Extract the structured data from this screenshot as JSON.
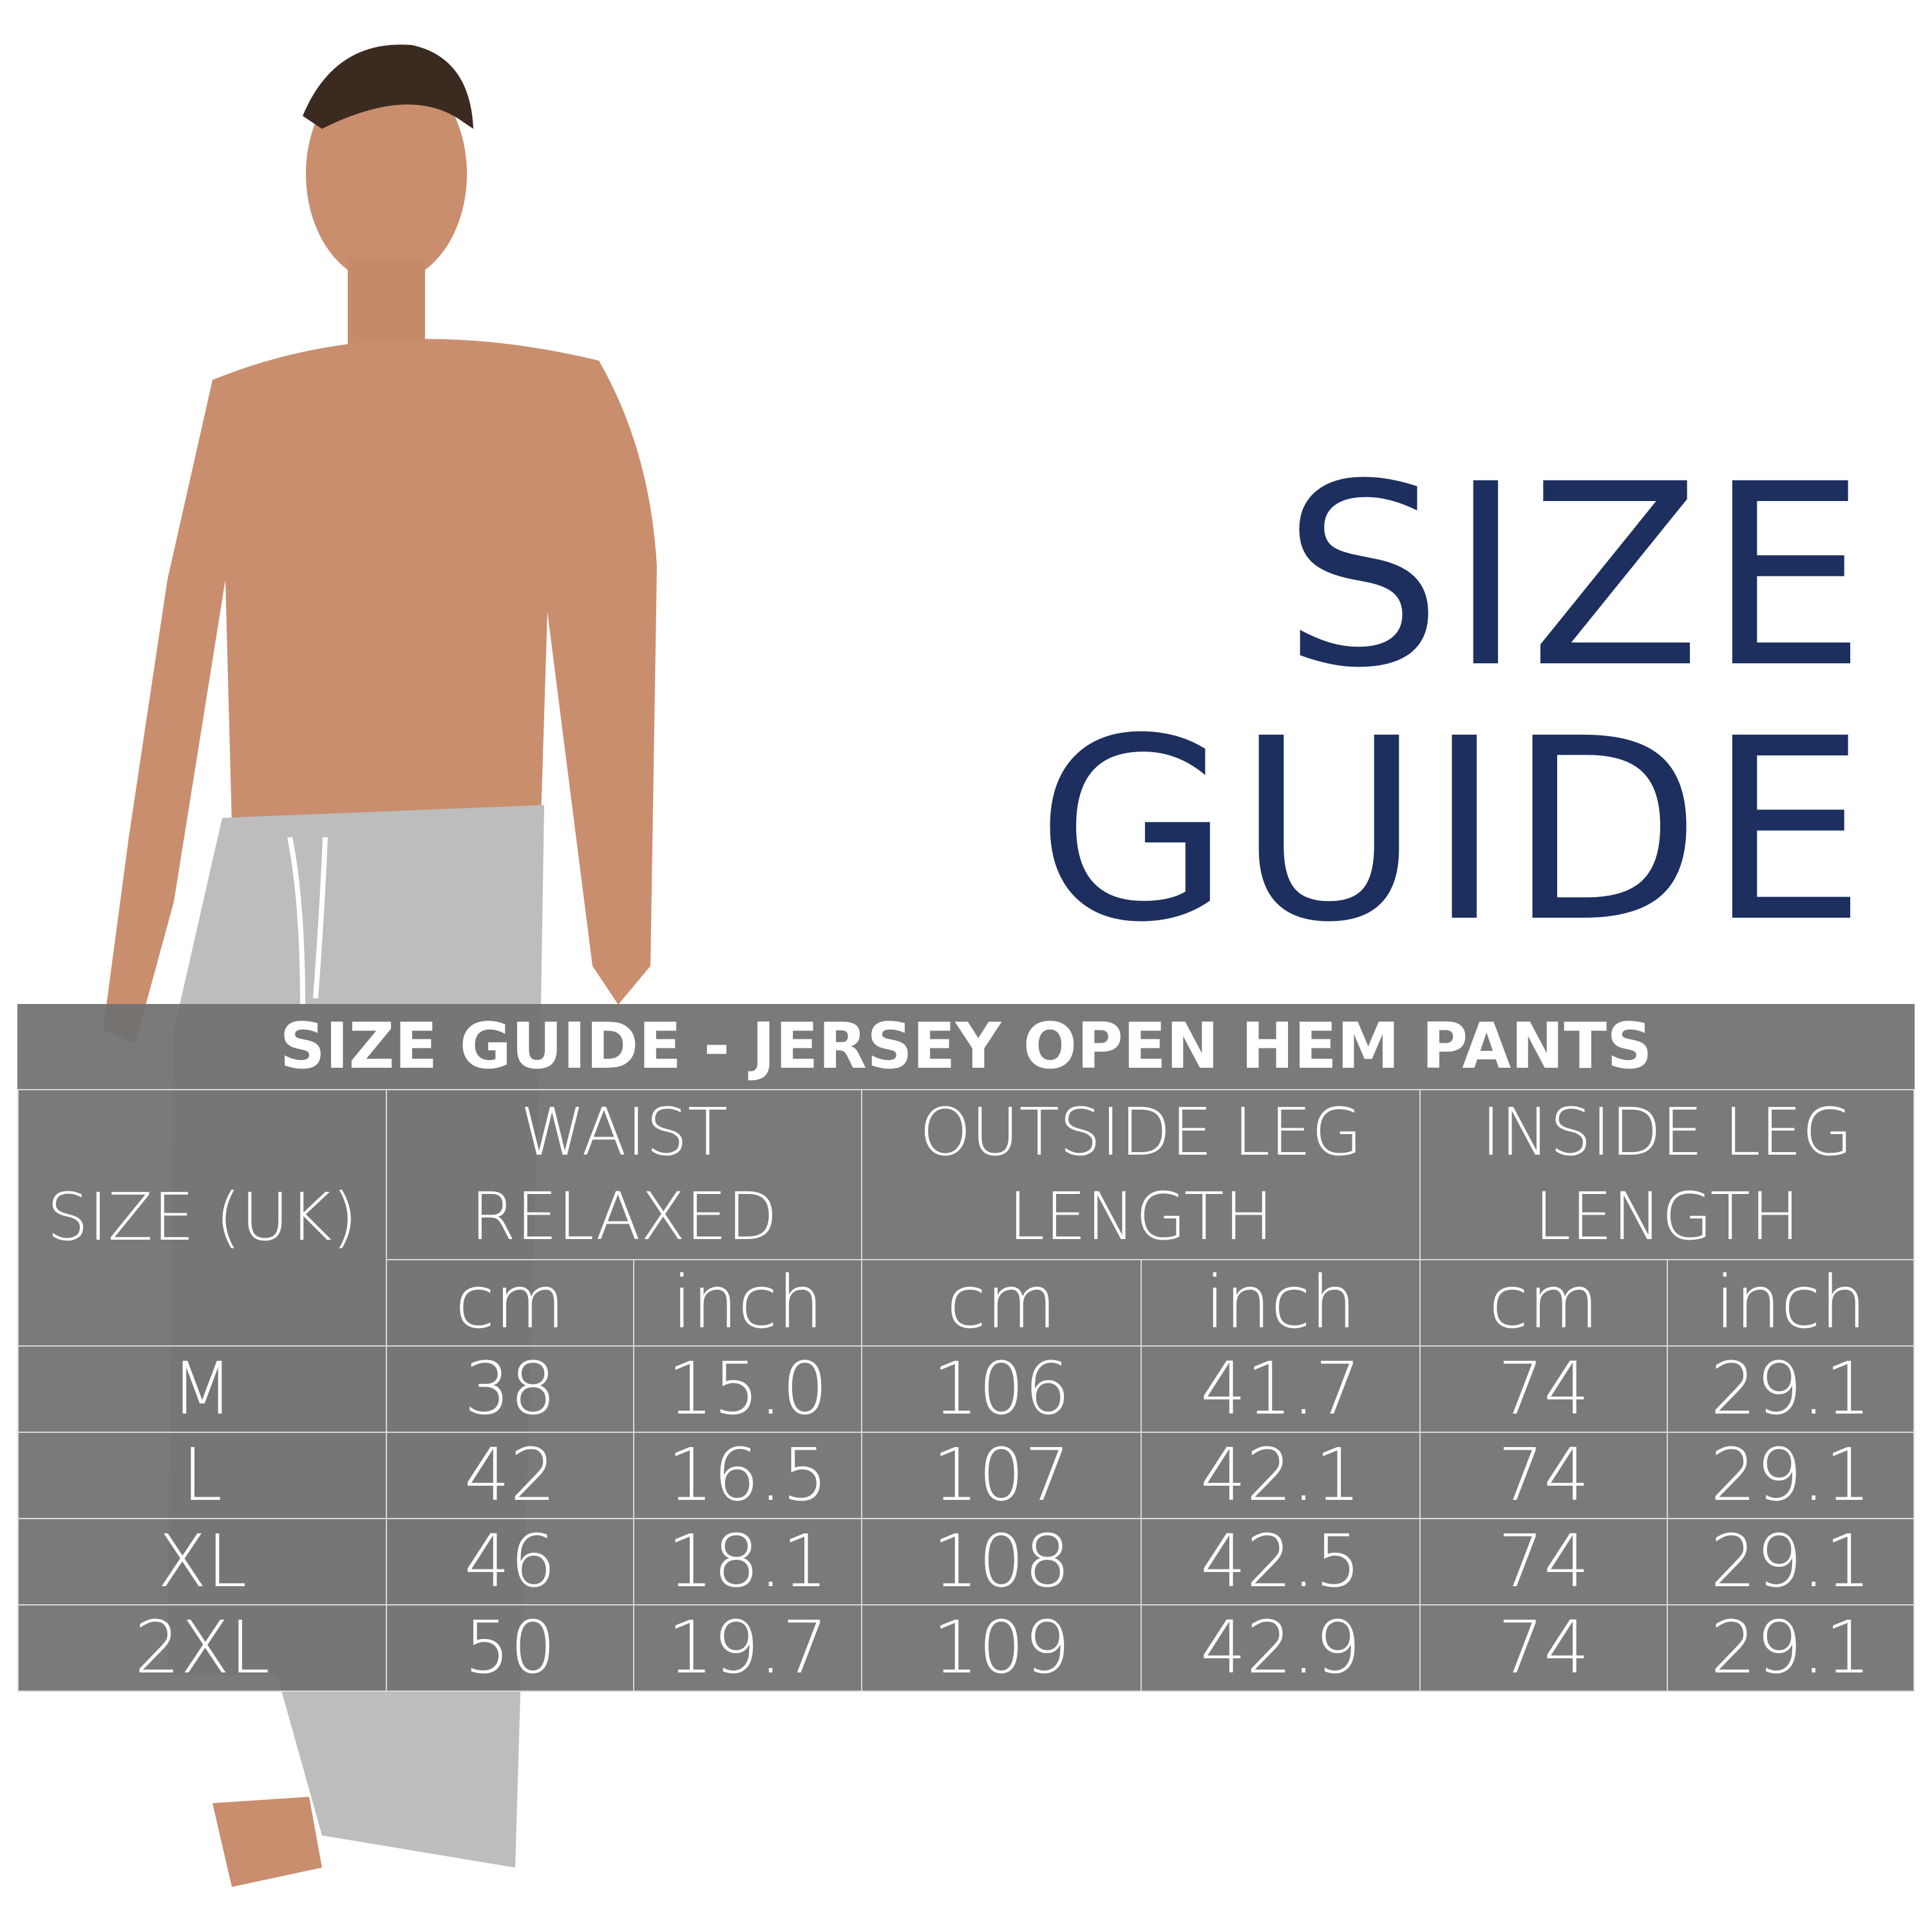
{
  "headline": {
    "line1": "SIZE",
    "line2": "GUIDE",
    "color": "#1c2f5f"
  },
  "table": {
    "title": "SIZE GUIDE - JERSEY OPEN HEM PANTS",
    "size_header": "SIZE (UK)",
    "groups": [
      {
        "line1": "WAIST",
        "line2": "RELAXED"
      },
      {
        "line1": "OUTSIDE LEG",
        "line2": "LENGTH"
      },
      {
        "line1": "INSIDE LEG",
        "line2": "LENGTH"
      }
    ],
    "units": [
      "cm",
      "inch",
      "cm",
      "inch",
      "cm",
      "inch"
    ],
    "rows": [
      {
        "size": "M",
        "values": [
          "38",
          "15.0",
          "106",
          "41.7",
          "74",
          "29.1"
        ]
      },
      {
        "size": "L",
        "values": [
          "42",
          "16.5",
          "107",
          "42.1",
          "74",
          "29.1"
        ]
      },
      {
        "size": "XL",
        "values": [
          "46",
          "18.1",
          "108",
          "42.5",
          "74",
          "29.1"
        ]
      },
      {
        "size": "2XL",
        "values": [
          "50",
          "19.7",
          "109",
          "42.9",
          "74",
          "29.1"
        ]
      }
    ]
  }
}
